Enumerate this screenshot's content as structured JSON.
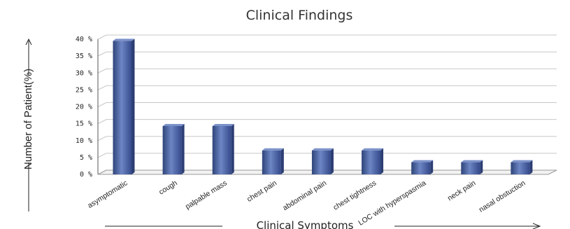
{
  "chart_data": {
    "type": "bar",
    "title": "Clinical Findings",
    "xlabel": "Clinical Symptoms",
    "ylabel": "Number of Patient(%)",
    "categories": [
      "asymptomatic",
      "cough",
      "palpable mass",
      "chest pain",
      "abdominal pain",
      "chest tightness",
      "LOC with hyperspasmia",
      "neck pain",
      "nasal obstuction"
    ],
    "values": [
      39.5,
      14.3,
      14.3,
      7.1,
      7.1,
      7.1,
      3.6,
      3.6,
      3.6
    ],
    "yticks": [
      "0 %",
      "5 %",
      "10 %",
      "15 %",
      "20 %",
      "25 %",
      "30 %",
      "35 %",
      "40 %"
    ],
    "ylim": [
      0,
      40
    ],
    "grid": true,
    "legend": "none",
    "bar_color": "#4a65a8",
    "bar_color_dark": "#2c3e73",
    "bar_color_light": "#7b91c9"
  }
}
